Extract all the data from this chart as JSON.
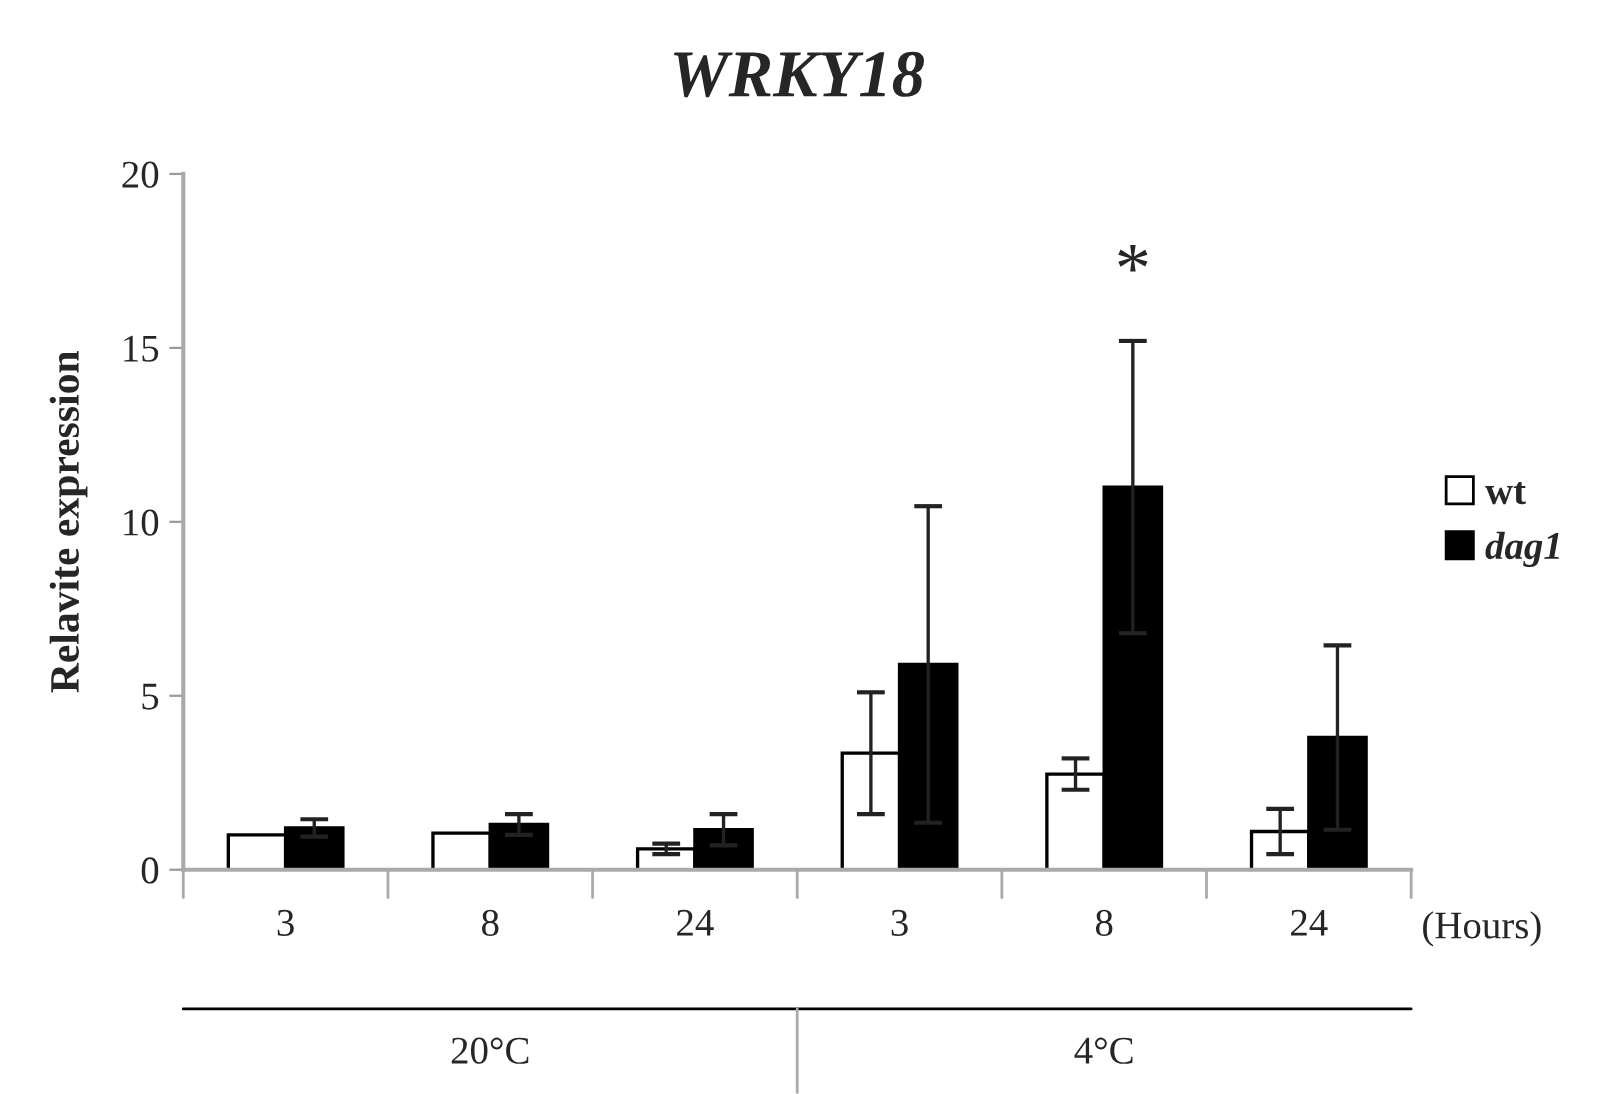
{
  "chart_data": {
    "type": "bar",
    "title": "WRKY18",
    "ylabel": "Relavite expression",
    "categories": [
      "3",
      "8",
      "24",
      "3",
      "8",
      "24"
    ],
    "series": [
      {
        "name": "wt",
        "color": "#ffffff",
        "values": [
          1.0,
          1.05,
          0.6,
          3.35,
          2.75,
          1.1
        ],
        "errors": [
          null,
          null,
          0.15,
          1.75,
          0.45,
          0.65
        ]
      },
      {
        "name": "dag1",
        "color": "#000000",
        "values": [
          1.2,
          1.3,
          1.15,
          5.9,
          11.0,
          3.8
        ],
        "errors": [
          0.25,
          0.3,
          0.45,
          4.55,
          4.2,
          2.65
        ]
      }
    ],
    "ylim": [
      0,
      20
    ],
    "yticks": [
      0,
      5,
      10,
      15,
      20
    ],
    "grid": false,
    "legend": "right",
    "annotations": [
      "(Hours)",
      "20°C",
      "4°C",
      "*"
    ]
  }
}
